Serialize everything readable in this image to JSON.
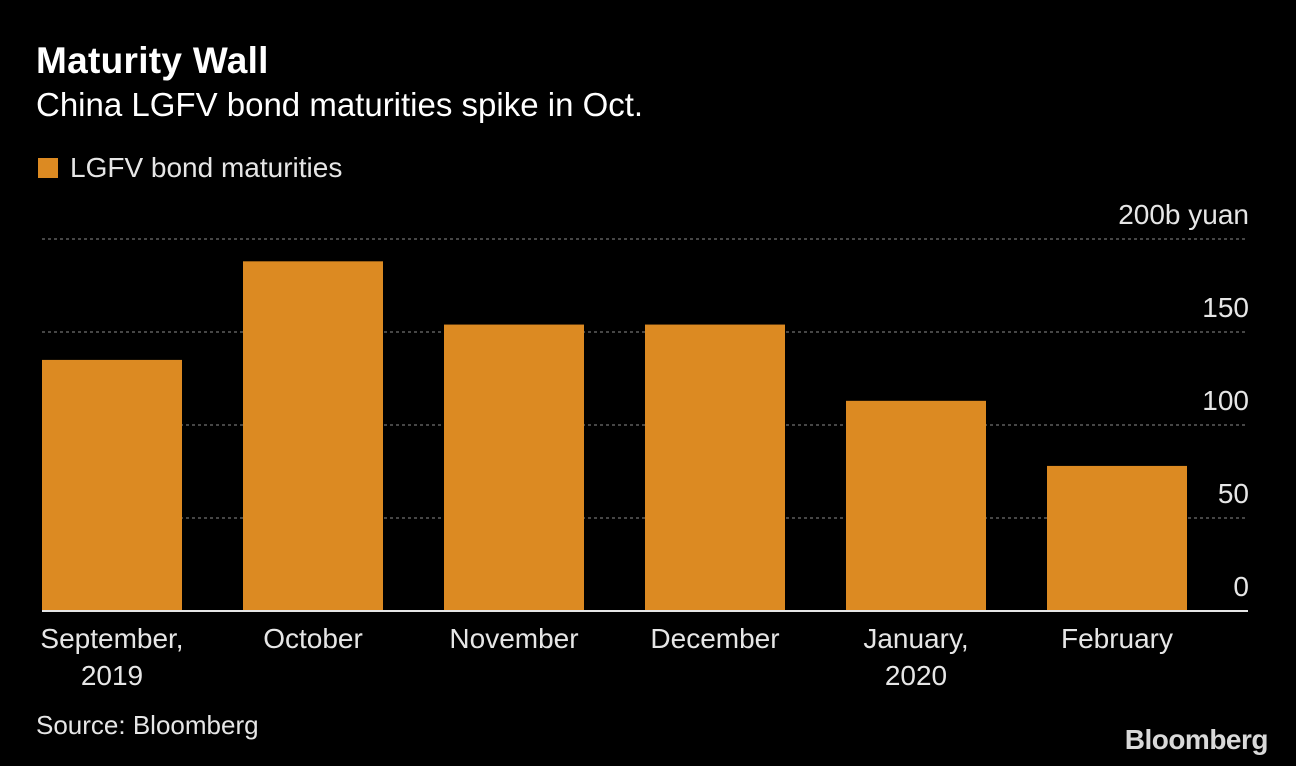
{
  "chart_data": {
    "type": "bar",
    "title": "Maturity Wall",
    "subtitle": "China LGFV bond maturities spike in Oct.",
    "categories": [
      [
        "September,",
        "2019"
      ],
      [
        "October"
      ],
      [
        "November"
      ],
      [
        "December"
      ],
      [
        "January,",
        "2020"
      ],
      [
        "February"
      ]
    ],
    "series": [
      {
        "name": "LGFV bond maturities",
        "values": [
          135,
          188,
          154,
          154,
          113,
          78
        ]
      }
    ],
    "ylim": [
      0,
      200
    ],
    "yticks": [
      0,
      50,
      100,
      150,
      200
    ],
    "ytick_labels": [
      "0",
      "50",
      "100",
      "150",
      "200b yuan"
    ],
    "xlabel": "",
    "ylabel": "",
    "grid": true,
    "legend": "top-left",
    "colors": {
      "bar": "#dc8a22",
      "background": "#000000",
      "grid": "#6f6f6f",
      "axis": "#e6e6e6"
    }
  },
  "source": "Source: Bloomberg",
  "brand": "Bloomberg"
}
